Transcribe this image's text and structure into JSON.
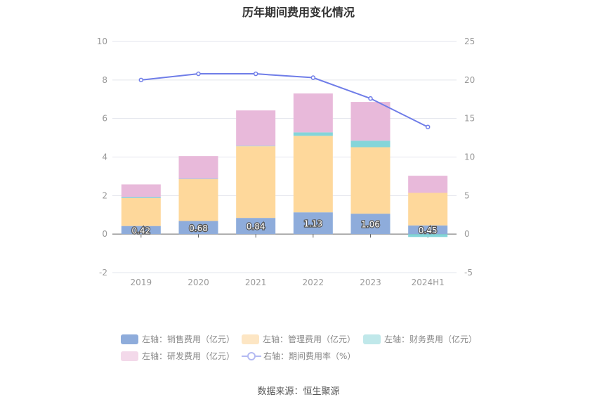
{
  "chart_data": {
    "type": "bar",
    "title": "历年期间费用变化情况",
    "categories": [
      "2019",
      "2020",
      "2021",
      "2022",
      "2023",
      "2024H1"
    ],
    "series": [
      {
        "name": "左轴：销售费用（亿元）",
        "color": "#8eacdb",
        "values": [
          0.42,
          0.68,
          0.84,
          1.13,
          1.06,
          0.45
        ],
        "labels": [
          "0.42",
          "0.68",
          "0.84",
          "1.13",
          "1.06",
          "0.45"
        ]
      },
      {
        "name": "左轴：管理费用（亿元）",
        "color": "#fed89b",
        "values": [
          1.45,
          2.17,
          3.72,
          3.97,
          3.45,
          1.69
        ]
      },
      {
        "name": "左轴：财务费用（亿元）",
        "color": "#84d5d9",
        "values": [
          0.05,
          0.02,
          0.02,
          0.18,
          0.34,
          -0.15
        ]
      },
      {
        "name": "左轴：研发费用（亿元）",
        "color": "#e8b9da",
        "values": [
          0.66,
          1.18,
          1.84,
          2.02,
          2.01,
          0.89
        ]
      }
    ],
    "line": {
      "name": "右轴：期间费用率（%）",
      "color": "#6f7de8",
      "values": [
        20.0,
        20.8,
        20.8,
        20.3,
        17.6,
        13.9
      ]
    },
    "left_axis": {
      "ticks": [
        "10",
        "8",
        "6",
        "4",
        "2",
        "0",
        "-2"
      ],
      "ylim": [
        -2,
        10
      ]
    },
    "right_axis": {
      "ticks": [
        "25",
        "20",
        "15",
        "10",
        "5",
        "0",
        "-5"
      ],
      "ylim": [
        -5,
        25
      ]
    },
    "grid": true,
    "legend_position": "bottom"
  },
  "source": "数据来源：恒生聚源"
}
